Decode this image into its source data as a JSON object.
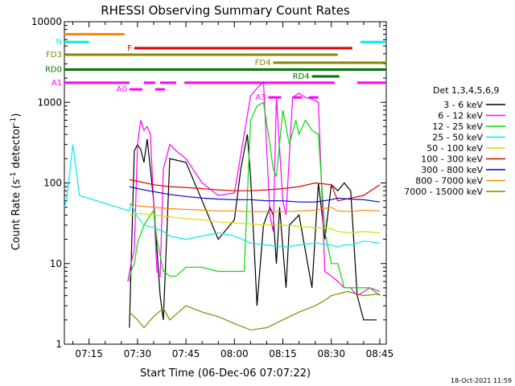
{
  "chart_data": {
    "type": "line",
    "title": "RHESSI Observing Summary Count Rates",
    "xlabel": "Start Time (06-Dec-06 07:07:22)",
    "ylabel": "Count Rate (s⁻¹ detector⁻¹)",
    "ylabel_parts": [
      "Count Rate (s",
      "-1",
      " detector",
      "-1",
      ")"
    ],
    "y_scale": "log",
    "ylim": [
      1,
      10000
    ],
    "xlim": [
      "07:07:22",
      "08:47:00"
    ],
    "x_ticks": [
      "07:15",
      "07:30",
      "07:45",
      "08:00",
      "08:15",
      "08:30",
      "08:45"
    ],
    "y_ticks": [
      "1",
      "10",
      "100",
      "1000",
      "10000"
    ],
    "grid": false,
    "legend": {
      "placement": "right",
      "title": "Det 1,3,4,5,6,9",
      "entries": [
        {
          "label": "3 - 6 keV",
          "color": "#000000"
        },
        {
          "label": "6 - 12 keV",
          "color": "#ff00ff"
        },
        {
          "label": "12 - 25 keV",
          "color": "#00dd00"
        },
        {
          "label": "25 - 50 keV",
          "color": "#00eeee"
        },
        {
          "label": "50 - 100 keV",
          "color": "#dddd00"
        },
        {
          "label": "100 - 300 keV",
          "color": "#dd0000"
        },
        {
          "label": "300 - 800 keV",
          "color": "#0000cc"
        },
        {
          "label": "800 - 7000 keV",
          "color": "#ff8800"
        },
        {
          "label": "7000 - 15000 keV",
          "color": "#888800"
        }
      ]
    },
    "flag_bars": [
      {
        "label": "N",
        "color": "#00eeee",
        "level": 5600,
        "segments": [
          [
            "07:07:22",
            "07:15:00"
          ],
          [
            "08:39:00",
            "08:47:00"
          ]
        ]
      },
      {
        "label": "",
        "color": "#ff8800",
        "level": 7000,
        "segments": [
          [
            "07:07:22",
            "07:26:00"
          ]
        ]
      },
      {
        "label": "F",
        "color": "#dd0000",
        "level": 4700,
        "segments": [
          [
            "07:29:00",
            "08:36:30"
          ]
        ]
      },
      {
        "label": "FD3",
        "color": "#888800",
        "level": 3900,
        "segments": [
          [
            "07:07:22",
            "08:32:00"
          ]
        ]
      },
      {
        "label": "FD4",
        "color": "#888800",
        "level": 3100,
        "segments": [
          [
            "08:12:00",
            "08:47:00"
          ]
        ]
      },
      {
        "label": "RD0",
        "color": "#007700",
        "level": 2550,
        "segments": [
          [
            "07:07:22",
            "08:47:00"
          ]
        ]
      },
      {
        "label": "RD4",
        "color": "#007700",
        "level": 2100,
        "segments": [
          [
            "08:24:00",
            "08:32:30"
          ]
        ]
      },
      {
        "label": "A1",
        "color": "#ff00ff",
        "level": 1750,
        "segments": [
          [
            "07:07:22",
            "07:27:30"
          ],
          [
            "07:32:00",
            "07:35:30"
          ],
          [
            "07:37:00",
            "07:42:00"
          ],
          [
            "07:44:30",
            "08:31:00"
          ],
          [
            "08:38:00",
            "08:47:00"
          ]
        ]
      },
      {
        "label": "A0",
        "color": "#ff00ff",
        "level": 1450,
        "segments": [
          [
            "07:27:30",
            "07:31:30"
          ],
          [
            "07:35:30",
            "07:38:30"
          ]
        ]
      },
      {
        "label": "A3",
        "color": "#ff00ff",
        "level": 1150,
        "segments": [
          [
            "08:10:30",
            "08:14:30"
          ],
          [
            "08:18:00",
            "08:21:00"
          ],
          [
            "08:23:00",
            "08:26:00"
          ]
        ]
      }
    ],
    "series": [
      {
        "name": "3 - 6 keV",
        "color": "#000000",
        "x": [
          "07:27:30",
          "07:29:00",
          "07:30:00",
          "07:31:00",
          "07:32:00",
          "07:33:00",
          "07:34:00",
          "07:35:00",
          "07:37:00",
          "07:38:00",
          "07:40:00",
          "07:45:00",
          "07:50:00",
          "07:55:00",
          "08:00:00",
          "08:02:00",
          "08:04:00",
          "08:05:00",
          "08:06:00",
          "08:07:00",
          "08:09:00",
          "08:11:00",
          "08:12:00",
          "08:13:00",
          "08:14:00",
          "08:16:00",
          "08:17:00",
          "08:20:00",
          "08:24:00",
          "08:26:00",
          "08:28:00",
          "08:30:00",
          "08:32:00",
          "08:34:00",
          "08:36:00",
          "08:38:00",
          "08:40:00",
          "08:44:00"
        ],
        "y": [
          1.6,
          250,
          300,
          260,
          180,
          350,
          150,
          60,
          4,
          2,
          200,
          180,
          60,
          20,
          35,
          150,
          400,
          120,
          20,
          3,
          30,
          50,
          40,
          10,
          50,
          5,
          30,
          40,
          5,
          100,
          20,
          95,
          80,
          100,
          80,
          4,
          2,
          2
        ]
      },
      {
        "name": "6 - 12 keV",
        "color": "#ff00ff",
        "x": [
          "07:27:00",
          "07:28:00",
          "07:29:00",
          "07:30:00",
          "07:31:00",
          "07:32:00",
          "07:33:00",
          "07:34:00",
          "07:36:00",
          "07:37:00",
          "07:38:00",
          "07:40:00",
          "07:42:00",
          "07:45:00",
          "07:50:00",
          "07:55:00",
          "08:00:00",
          "08:05:00",
          "08:07:00",
          "08:09:00",
          "08:11:00",
          "08:12:00",
          "08:13:00",
          "08:15:00",
          "08:16:00",
          "08:18:00",
          "08:20:00",
          "08:22:00",
          "08:24:00",
          "08:26:00",
          "08:28:00",
          "08:30:00",
          "08:32:00",
          "08:34:00",
          "08:36:00",
          "08:38:00",
          "08:42:00",
          "08:45:00"
        ],
        "y": [
          6,
          10,
          15,
          300,
          600,
          450,
          500,
          400,
          8,
          7,
          150,
          300,
          250,
          200,
          100,
          70,
          75,
          1200,
          1500,
          1800,
          40,
          25,
          1150,
          60,
          40,
          1150,
          1300,
          1150,
          1100,
          1000,
          8,
          7,
          6,
          5,
          5,
          4,
          5,
          4.5
        ]
      },
      {
        "name": "12 - 25 keV",
        "color": "#00dd00",
        "x": [
          "07:27:30",
          "07:28:00",
          "07:29:00",
          "07:30:00",
          "07:32:00",
          "07:34:00",
          "07:35:00",
          "07:36:00",
          "07:38:00",
          "07:40:00",
          "07:42:00",
          "07:45:00",
          "07:50:00",
          "07:55:00",
          "08:00:00",
          "08:03:00",
          "08:05:00",
          "08:07:00",
          "08:09:00",
          "08:11:00",
          "08:12:00",
          "08:13:00",
          "08:15:00",
          "08:17:00",
          "08:19:00",
          "08:20:00",
          "08:22:00",
          "08:24:00",
          "08:26:00",
          "08:28:00",
          "08:30:00",
          "08:32:00",
          "08:34:00",
          "08:36:00",
          "08:38:00",
          "08:40:00",
          "08:42:00",
          "08:45:00"
        ],
        "y": [
          6,
          8,
          10,
          18,
          30,
          40,
          45,
          20,
          8,
          7,
          7,
          9,
          9,
          8,
          8,
          8,
          600,
          900,
          1000,
          300,
          150,
          120,
          800,
          300,
          600,
          400,
          600,
          450,
          400,
          25,
          10,
          10,
          5,
          5,
          5,
          5,
          5,
          4
        ]
      },
      {
        "name": "25 - 50 keV",
        "color": "#00eeee",
        "x": [
          "07:07:22",
          "07:08:00",
          "07:10:00",
          "07:12:00",
          "07:27:30",
          "07:28:00",
          "07:30:00",
          "07:32:00",
          "07:35:00",
          "07:38:00",
          "07:40:00",
          "07:45:00",
          "07:50:00",
          "07:55:00",
          "08:00:00",
          "08:05:00",
          "08:10:00",
          "08:15:00",
          "08:20:00",
          "08:25:00",
          "08:30:00",
          "08:32:00",
          "08:34:00",
          "08:36:00",
          "08:38:00",
          "08:40:00",
          "08:45:00"
        ],
        "y": [
          50,
          60,
          300,
          70,
          45,
          55,
          38,
          30,
          28,
          25,
          22,
          20,
          22,
          24,
          22,
          18,
          17,
          16,
          17,
          18,
          17,
          16,
          17,
          17,
          18,
          19,
          18
        ]
      },
      {
        "name": "50 - 100 keV",
        "color": "#dddd00",
        "x": [
          "07:27:30",
          "07:30:00",
          "07:35:00",
          "07:40:00",
          "07:45:00",
          "07:50:00",
          "07:55:00",
          "08:00:00",
          "08:05:00",
          "08:10:00",
          "08:15:00",
          "08:20:00",
          "08:25:00",
          "08:30:00",
          "08:32:00",
          "08:36:00",
          "08:40:00",
          "08:45:00"
        ],
        "y": [
          40,
          42,
          40,
          38,
          36,
          35,
          33,
          32,
          31,
          30,
          30,
          29,
          28,
          27,
          25,
          24,
          25,
          24
        ]
      },
      {
        "name": "100 - 300 keV",
        "color": "#dd0000",
        "x": [
          "07:27:30",
          "07:30:00",
          "07:35:00",
          "07:40:00",
          "07:45:00",
          "07:50:00",
          "07:55:00",
          "08:00:00",
          "08:05:00",
          "08:10:00",
          "08:15:00",
          "08:20:00",
          "08:25:00",
          "08:30:00",
          "08:32:00",
          "08:36:00",
          "08:40:00",
          "08:45:00"
        ],
        "y": [
          110,
          105,
          95,
          90,
          88,
          85,
          82,
          80,
          80,
          82,
          85,
          90,
          100,
          95,
          60,
          65,
          70,
          95
        ]
      },
      {
        "name": "300 - 800 keV",
        "color": "#0000cc",
        "x": [
          "07:27:30",
          "07:30:00",
          "07:35:00",
          "07:40:00",
          "07:45:00",
          "07:50:00",
          "07:55:00",
          "08:00:00",
          "08:05:00",
          "08:10:00",
          "08:15:00",
          "08:20:00",
          "08:25:00",
          "08:30:00",
          "08:32:00",
          "08:36:00",
          "08:40:00",
          "08:45:00"
        ],
        "y": [
          90,
          85,
          78,
          72,
          68,
          65,
          63,
          62,
          62,
          60,
          60,
          58,
          58,
          62,
          65,
          63,
          62,
          58
        ]
      },
      {
        "name": "800 - 7000 keV",
        "color": "#ff8800",
        "x": [
          "07:27:30",
          "07:30:00",
          "07:35:00",
          "07:40:00",
          "07:45:00",
          "07:50:00",
          "07:55:00",
          "08:00:00",
          "08:05:00",
          "08:10:00",
          "08:15:00",
          "08:20:00",
          "08:25:00",
          "08:30:00",
          "08:32:00",
          "08:36:00",
          "08:40:00",
          "08:45:00"
        ],
        "y": [
          55,
          52,
          50,
          48,
          47,
          46,
          45,
          45,
          44,
          44,
          44,
          45,
          46,
          50,
          45,
          44,
          46,
          45
        ]
      },
      {
        "name": "7000 - 15000 keV",
        "color": "#888800",
        "x": [
          "07:27:30",
          "07:30:00",
          "07:32:00",
          "07:35:00",
          "07:38:00",
          "07:40:00",
          "07:45:00",
          "07:50:00",
          "07:55:00",
          "08:00:00",
          "08:05:00",
          "08:10:00",
          "08:15:00",
          "08:20:00",
          "08:25:00",
          "08:28:00",
          "08:30:00",
          "08:35:00",
          "08:40:00",
          "08:45:00"
        ],
        "y": [
          2.5,
          2,
          1.6,
          2.2,
          2.8,
          2,
          3,
          2.5,
          2.2,
          1.8,
          1.5,
          1.6,
          2,
          2.5,
          3,
          3.5,
          4,
          4.5,
          4,
          4.2
        ]
      }
    ],
    "footer_date": "18-Oct-2021 11:59"
  }
}
